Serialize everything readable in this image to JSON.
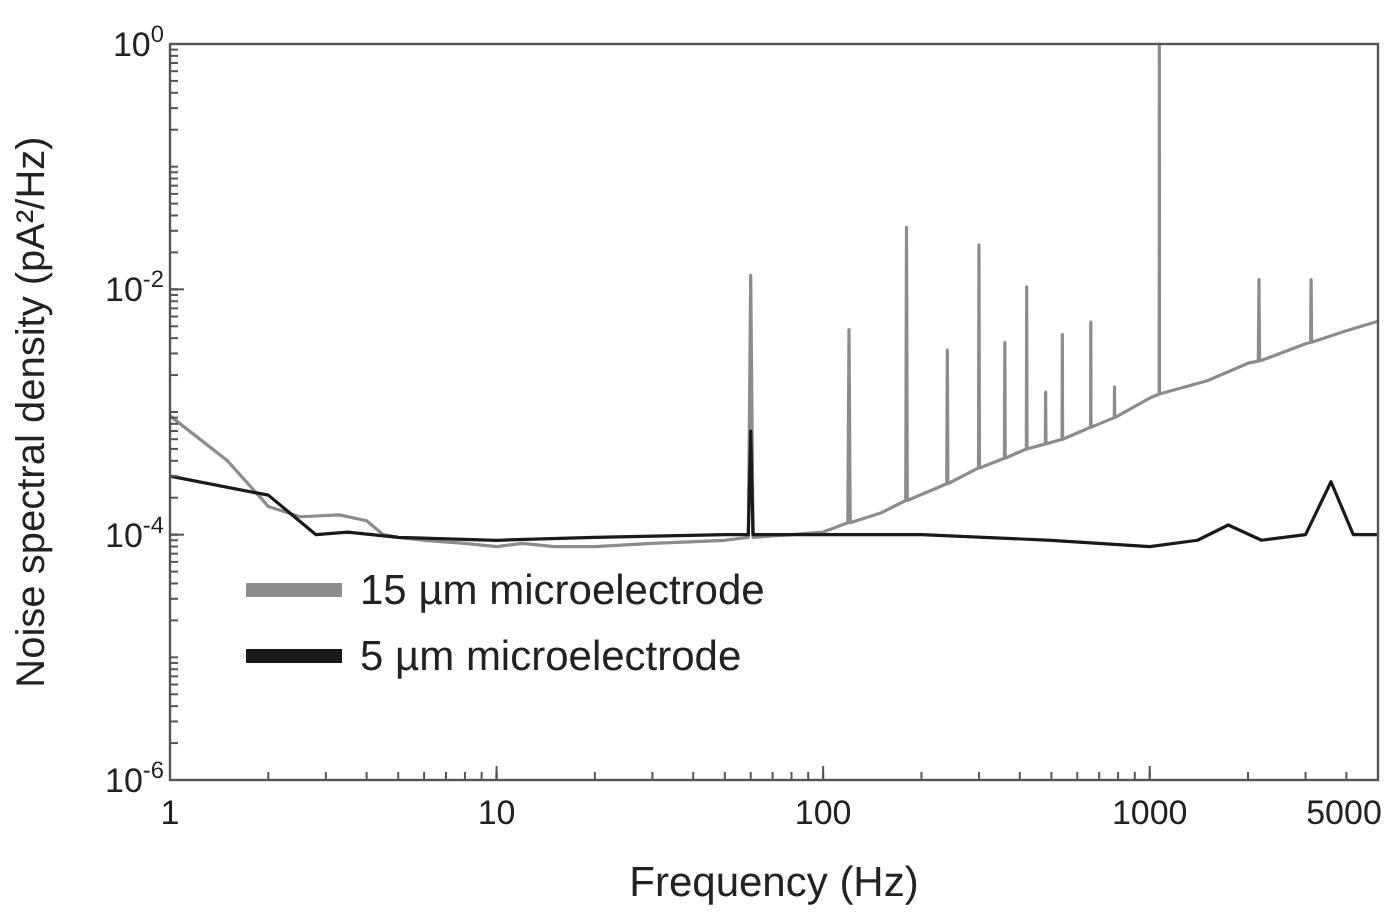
{
  "chart_data": {
    "type": "line",
    "xlabel": "Frequency (Hz)",
    "ylabel": "Noise spectral density (pA²/Hz)",
    "log": "xy",
    "xlim": [
      1,
      5000
    ],
    "ylim": [
      1e-06,
      1
    ],
    "xticks": [
      1,
      10,
      100,
      1000,
      5000
    ],
    "yticks": [
      {
        "value": 1e-06,
        "label": "10$^{-6}$"
      },
      {
        "value": 0.0001,
        "label": "10$^{-4}$"
      },
      {
        "value": 0.01,
        "label": "10$^{-2}$"
      },
      {
        "value": 1,
        "label": "10$^{0}$"
      }
    ],
    "grid": false,
    "legend": "bottom left",
    "marker": "none",
    "line_style": "solid",
    "series": [
      {
        "name": "15 µm microelectrode",
        "color": "#8c8c8c",
        "x": [
          1,
          1.5,
          2,
          2.5,
          3.3,
          4,
          4.5,
          5,
          6,
          8,
          10,
          12,
          15,
          20,
          30,
          50,
          59,
          60,
          61,
          80,
          100,
          119,
          120,
          121,
          150,
          179,
          180,
          181,
          239,
          240,
          241,
          299,
          300,
          301,
          359,
          360,
          361,
          419,
          420,
          421,
          479,
          480,
          481,
          539,
          540,
          541,
          659,
          660,
          661,
          700,
          779,
          780,
          781,
          1000,
          1069,
          1070,
          1071,
          1500,
          2000,
          2150,
          2160,
          2170,
          3000,
          3110,
          3120,
          3130,
          4000,
          5000
        ],
        "values": [
          0.00093,
          0.0004,
          0.00017,
          0.00014,
          0.000145,
          0.00013,
          0.0001,
          9.5e-05,
          9e-05,
          8.5e-05,
          8e-05,
          8.5e-05,
          8e-05,
          8e-05,
          8.5e-05,
          9e-05,
          9.5e-05,
          0.013,
          9.5e-05,
          0.0001,
          0.000105,
          0.000125,
          0.0047,
          0.000125,
          0.00015,
          0.00019,
          0.032,
          0.00019,
          0.00026,
          0.0032,
          0.00026,
          0.00035,
          0.023,
          0.00035,
          0.00042,
          0.0037,
          0.00042,
          0.0005,
          0.0105,
          0.0005,
          0.00055,
          0.00145,
          0.00055,
          0.0006,
          0.0043,
          0.0006,
          0.00075,
          0.0054,
          0.00075,
          0.0008,
          0.0009,
          0.0016,
          0.0009,
          0.0013,
          0.0014,
          1,
          0.0014,
          0.0018,
          0.0025,
          0.0026,
          0.012,
          0.0026,
          0.0036,
          0.0037,
          0.012,
          0.0037,
          0.0046,
          0.0055
        ]
      },
      {
        "name": "5 µm microelectrode",
        "color": "#1a1a1a",
        "x": [
          1,
          2,
          2.8,
          3.5,
          5,
          10,
          20,
          50,
          59,
          60,
          61,
          100,
          200,
          500,
          1000,
          1400,
          1740,
          2200,
          3000,
          3590,
          4200,
          5000
        ],
        "values": [
          0.0003,
          0.00021,
          0.0001,
          0.000105,
          9.5e-05,
          9e-05,
          9.5e-05,
          0.0001,
          0.0001,
          0.0007,
          0.0001,
          0.0001,
          0.0001,
          9e-05,
          8e-05,
          9e-05,
          0.00012,
          9e-05,
          0.0001,
          0.00027,
          0.0001,
          0.0001
        ]
      }
    ]
  }
}
